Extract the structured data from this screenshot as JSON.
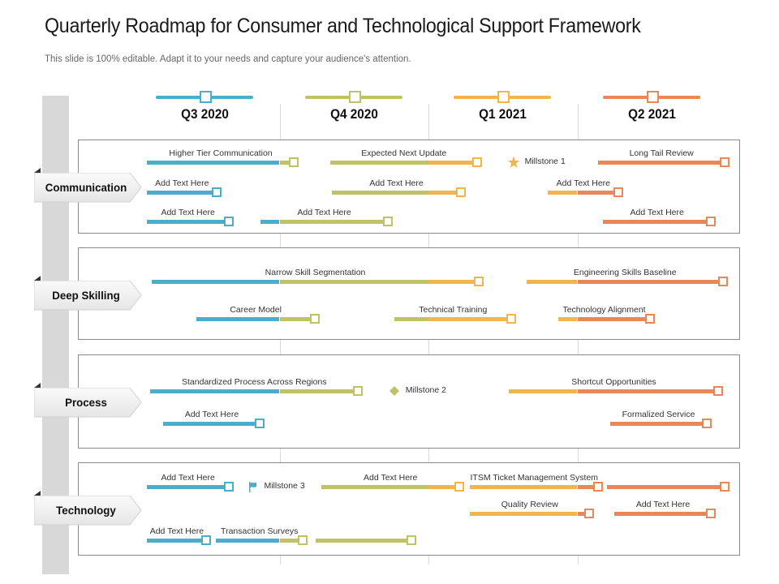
{
  "title": "Quarterly Roadmap for Consumer and Technological Support Framework",
  "subtitle": "This slide is 100% editable. Adapt it to your needs and capture your audience's attention.",
  "colors": {
    "q3": "#4badc9",
    "q4": "#bfc267",
    "q1": "#f0b54c",
    "q2": "#e8875a",
    "panel_border": "#8a8a8a",
    "grid": "#d9d9d9"
  },
  "quarters": [
    {
      "label": "Q3 2020",
      "color_key": "q3"
    },
    {
      "label": "Q4 2020",
      "color_key": "q4"
    },
    {
      "label": "Q1 2021",
      "color_key": "q1"
    },
    {
      "label": "Q2 2021",
      "color_key": "q2"
    }
  ],
  "categories": [
    {
      "label": "Communication",
      "rows": [
        {
          "bars": [
            {
              "label": "Higher Tier Communication",
              "start": 0.11,
              "end": 1.1
            },
            {
              "label": "Expected Next Update",
              "start": 1.34,
              "end": 2.33
            }
          ],
          "milestones": [
            {
              "label": "Millstone 1",
              "icon": "star-icon",
              "at": 2.57,
              "color_key": "q1"
            }
          ],
          "bars2": [
            {
              "label": "Long Tail Review",
              "start": 3.14,
              "end": 3.99
            }
          ]
        },
        {
          "bars": [
            {
              "label": "Add Text Here",
              "start": 0.11,
              "end": 0.58
            },
            {
              "label": "Add Text Here",
              "start": 1.35,
              "end": 2.22
            },
            {
              "label": "Add Text Here",
              "start": 2.8,
              "end": 3.28
            }
          ]
        },
        {
          "bars": [
            {
              "label": "Add Text Here",
              "start": 0.11,
              "end": 0.66
            },
            {
              "label": "Add Text Here",
              "start": 0.87,
              "end": 1.73
            },
            {
              "label": "Add Text Here",
              "start": 3.17,
              "end": 3.9
            }
          ]
        }
      ]
    },
    {
      "label": "Deep Skilling",
      "rows": [
        {
          "bars": [
            {
              "label": "Narrow Skill Segmentation",
              "start": 0.14,
              "end": 2.34
            },
            {
              "label": "Engineering Skills Baseline",
              "start": 2.66,
              "end": 3.98
            }
          ]
        },
        {
          "bars": [
            {
              "label": "Career Model",
              "start": 0.44,
              "end": 1.24
            },
            {
              "label": "Technical Training",
              "start": 1.77,
              "end": 2.56
            },
            {
              "label": "Technology Alignment",
              "start": 2.87,
              "end": 3.49
            }
          ]
        }
      ]
    },
    {
      "label": "Process",
      "rows": [
        {
          "bars": [
            {
              "label": "Standardized Process Across Regions",
              "start": 0.13,
              "end": 1.53
            },
            {
              "label": "Shortcut Opportunities",
              "start": 2.54,
              "end": 3.95
            }
          ],
          "milestones": [
            {
              "label": "Millstone 2",
              "icon": "diamond-icon",
              "at": 1.77,
              "color_key": "q4"
            }
          ]
        },
        {
          "bars": [
            {
              "label": "Add Text Here",
              "start": 0.22,
              "end": 0.87
            },
            {
              "label": "Formalized Service",
              "start": 3.22,
              "end": 3.87
            }
          ]
        }
      ]
    },
    {
      "label": "Technology",
      "rows": [
        {
          "bars": [
            {
              "label": "Add Text Here",
              "start": 0.11,
              "end": 0.66
            },
            {
              "label": "Add Text Here",
              "start": 1.28,
              "end": 2.21
            },
            {
              "label": "ITSM  Ticket Management  System",
              "start": 2.28,
              "end": 3.14
            },
            {
              "label": "",
              "start": 3.2,
              "end": 3.99
            }
          ],
          "milestones": [
            {
              "label": "Millstone 3",
              "icon": "flag-icon",
              "at": 0.82,
              "color_key": "q3"
            }
          ]
        },
        {
          "bars": [
            {
              "label": "Quality Review",
              "start": 2.28,
              "end": 3.08
            },
            {
              "label": "Add Text Here",
              "start": 3.25,
              "end": 3.9
            }
          ]
        },
        {
          "bars": [
            {
              "label": "Add Text Here",
              "start": 0.11,
              "end": 0.51
            },
            {
              "label": "Transaction Surveys",
              "start": 0.57,
              "end": 1.16
            },
            {
              "label": "",
              "start": 1.24,
              "end": 1.89
            }
          ]
        }
      ]
    }
  ]
}
